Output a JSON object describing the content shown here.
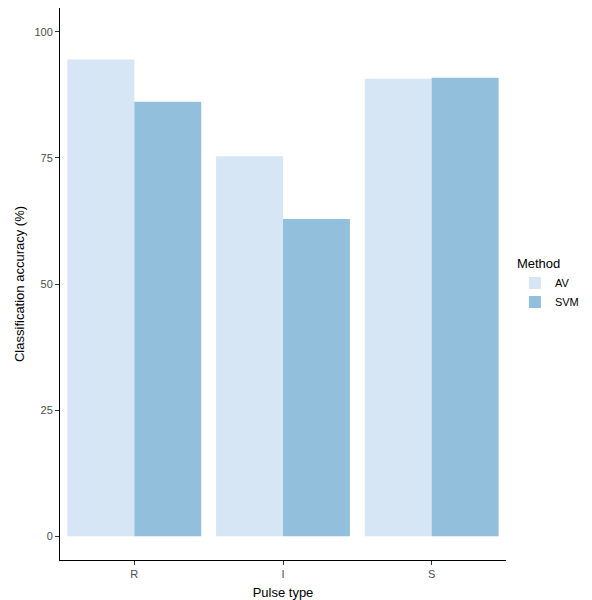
{
  "chart_data": {
    "type": "bar",
    "x_label": "Pulse type",
    "y_label": "Classification accuracy (%)",
    "categories": [
      "R",
      "I",
      "S"
    ],
    "series": [
      {
        "name": "AV",
        "color": "#d6e6f4",
        "values": [
          94.5,
          75.3,
          90.7
        ]
      },
      {
        "name": "SVM",
        "color": "#92bfdb",
        "values": [
          86.1,
          62.9,
          90.9
        ]
      }
    ],
    "legend_title": "Method",
    "legend": "right",
    "ylim": [
      -4.7,
      104.7
    ],
    "yticks": [
      0,
      25,
      50,
      75,
      100
    ],
    "grid": false
  }
}
